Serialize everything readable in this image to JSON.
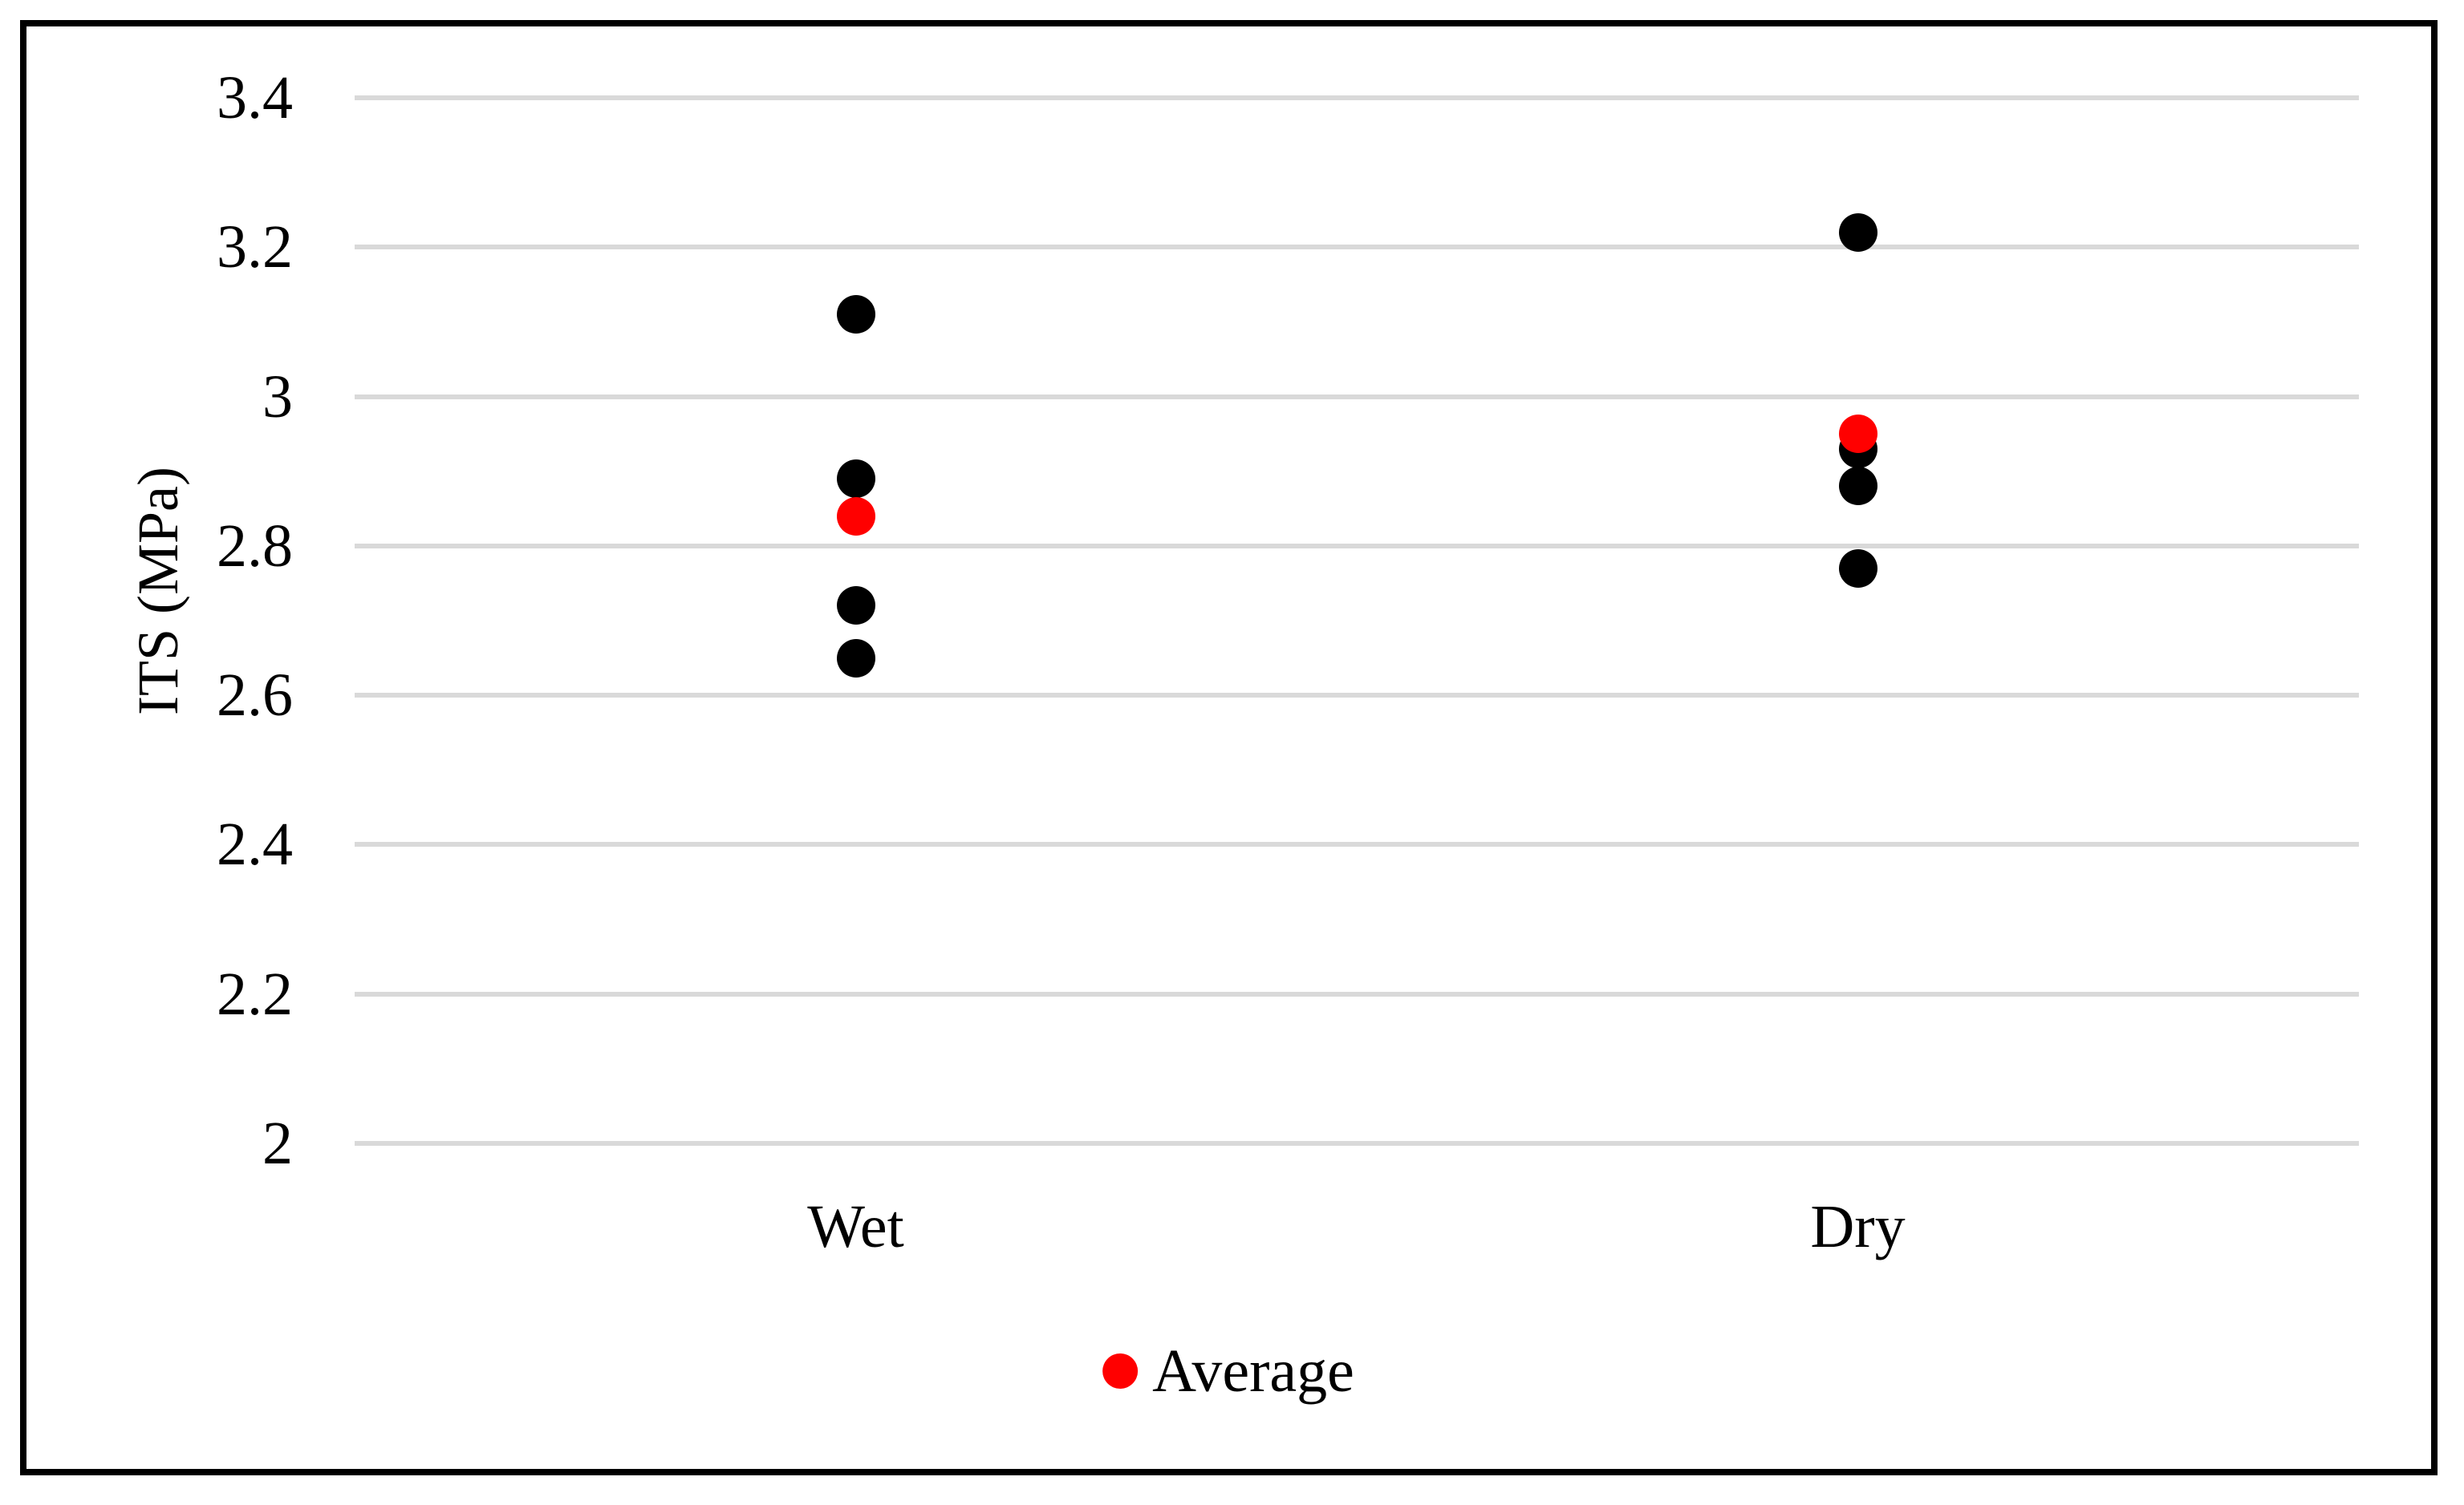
{
  "chart_data": {
    "type": "scatter",
    "title": "",
    "xlabel": "",
    "ylabel": "ITS (MPa)",
    "ylim": [
      2,
      3.4
    ],
    "ytick_step": 0.2,
    "yticks": [
      "3.4",
      "3.2",
      "3",
      "2.8",
      "2.6",
      "2.4",
      "2.2",
      "2"
    ],
    "categories": [
      "Wet",
      "Dry"
    ],
    "series": [
      {
        "name": "",
        "role": "individual-measurements",
        "color": "#000000",
        "marker": "circle",
        "data": {
          "Wet": [
            3.11,
            2.89,
            2.72,
            2.65
          ],
          "Dry": [
            3.22,
            2.93,
            2.88,
            2.77
          ]
        }
      },
      {
        "name": "Average",
        "role": "average",
        "color": "#ff0000",
        "marker": "circle",
        "data": {
          "Wet": [
            2.84
          ],
          "Dry": [
            2.95
          ]
        }
      }
    ],
    "legend": [
      {
        "label": "Average",
        "color": "#ff0000"
      }
    ],
    "legend_position": "bottom-center",
    "grid": true,
    "gridline_color": "#d9d9d9",
    "frame_color": "#000000",
    "background_color": "#ffffff"
  }
}
